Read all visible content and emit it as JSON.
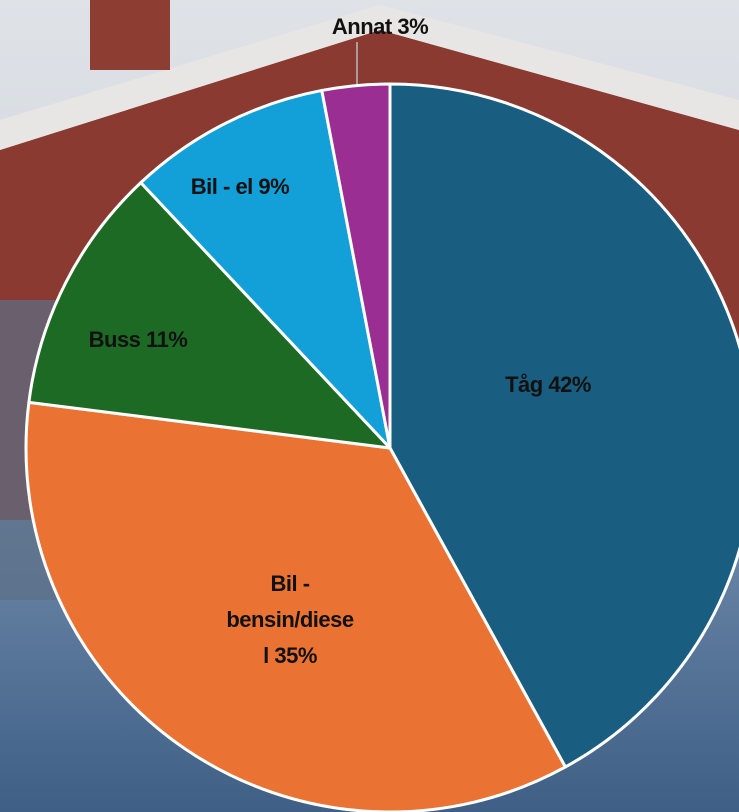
{
  "chart_data": {
    "type": "pie",
    "categories": [
      "Tåg",
      "Bil - bensin/diesel",
      "Buss",
      "Bil - el",
      "Annat"
    ],
    "values": [
      42,
      35,
      11,
      9,
      3
    ],
    "value_labels": [
      "42%",
      "35%",
      "11%",
      "9%",
      "3%"
    ],
    "colors": [
      "#195e80",
      "#ea7333",
      "#1d6a25",
      "#139fd7",
      "#9a2e92"
    ]
  }
}
